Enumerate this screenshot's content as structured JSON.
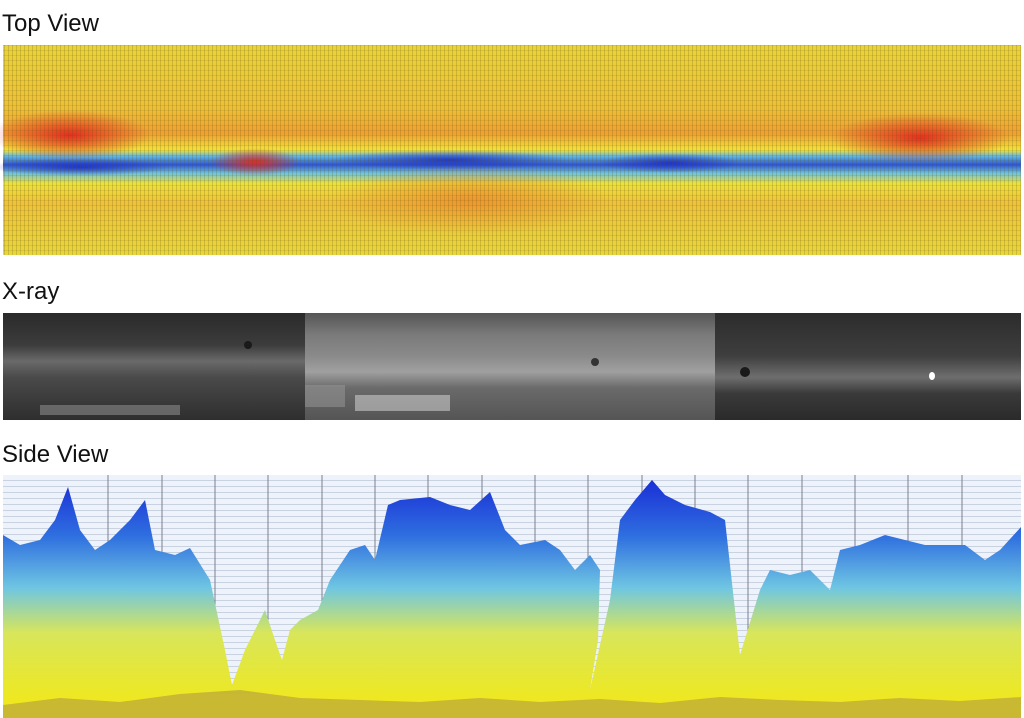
{
  "panels": [
    {
      "title": "Top View"
    },
    {
      "title": "X-ray"
    },
    {
      "title": "Side View"
    }
  ]
}
